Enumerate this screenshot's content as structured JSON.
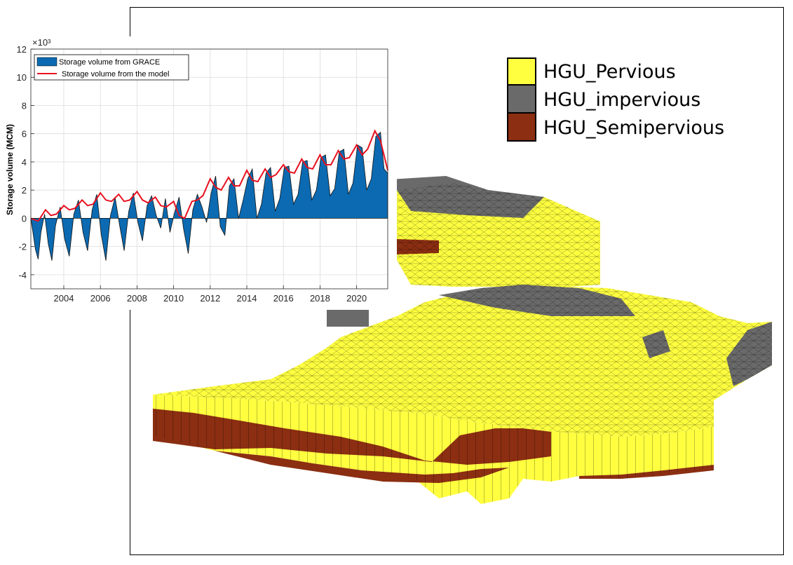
{
  "model_legend": {
    "items": [
      {
        "label": "HGU_Pervious",
        "color": "#ffff40"
      },
      {
        "label": "HGU_impervious",
        "color": "#6a6a6a"
      },
      {
        "label": "HGU_Semipervious",
        "color": "#8b2e12"
      }
    ]
  },
  "chart_data": {
    "type": "area",
    "ylabel": "Storage volume (MCM)",
    "y_exponent": "×10³",
    "xlim": [
      2002.2,
      2021.7
    ],
    "ylim": [
      -5,
      12
    ],
    "x_ticks": [
      2004,
      2006,
      2008,
      2010,
      2012,
      2014,
      2016,
      2018,
      2020
    ],
    "x_tick_labels": [
      "2004",
      "2006",
      "2008",
      "2010",
      "2012",
      "2014",
      "2016",
      "2018",
      "2020"
    ],
    "y_ticks": [
      -4,
      -2,
      0,
      2,
      4,
      6,
      8,
      10,
      12
    ],
    "y_tick_labels": [
      "-4",
      "-2",
      "0",
      "2",
      "4",
      "6",
      "8",
      "10",
      "12"
    ],
    "grid": true,
    "legend_position": "top-left",
    "series": [
      {
        "name": "Storage volume from GRACE",
        "style": "area",
        "color": "#0b6ab1",
        "x": [
          2002.2,
          2002.45,
          2002.6,
          2002.75,
          2002.95,
          2003.15,
          2003.35,
          2003.55,
          2003.8,
          2004.05,
          2004.3,
          2004.55,
          2004.8,
          2005.05,
          2005.3,
          2005.55,
          2005.8,
          2006.05,
          2006.3,
          2006.55,
          2006.8,
          2007.05,
          2007.3,
          2007.55,
          2007.8,
          2008.05,
          2008.3,
          2008.55,
          2008.8,
          2009.05,
          2009.3,
          2009.55,
          2009.8,
          2010.05,
          2010.3,
          2010.55,
          2010.8,
          2011.05,
          2011.3,
          2011.55,
          2011.8,
          2012.05,
          2012.3,
          2012.55,
          2012.8,
          2013.05,
          2013.3,
          2013.55,
          2013.8,
          2014.05,
          2014.3,
          2014.55,
          2014.8,
          2015.05,
          2015.3,
          2015.55,
          2015.8,
          2016.05,
          2016.3,
          2016.55,
          2016.8,
          2017.05,
          2017.3,
          2017.55,
          2017.8,
          2018.05,
          2018.3,
          2018.55,
          2018.8,
          2019.05,
          2019.3,
          2019.55,
          2019.8,
          2020.05,
          2020.3,
          2020.55,
          2020.8,
          2021.05,
          2021.3,
          2021.5,
          2021.7
        ],
        "y": [
          0.0,
          -2.2,
          -2.9,
          -1.0,
          0.3,
          -1.8,
          -3.0,
          -0.5,
          0.8,
          -1.5,
          -2.7,
          0.3,
          1.3,
          -1.0,
          -2.3,
          0.6,
          1.7,
          -1.2,
          -3.0,
          0.2,
          1.5,
          -0.5,
          -2.3,
          0.5,
          1.8,
          -0.3,
          -1.6,
          0.9,
          1.6,
          0.2,
          -0.7,
          1.4,
          -1.0,
          0.4,
          1.5,
          -0.8,
          -2.5,
          0.6,
          1.7,
          0.8,
          -0.3,
          1.8,
          3.0,
          -0.6,
          -1.2,
          2.3,
          2.8,
          0.0,
          1.3,
          2.8,
          3.5,
          0.0,
          1.0,
          3.2,
          3.6,
          0.5,
          1.4,
          3.6,
          3.7,
          1.0,
          1.7,
          4.0,
          4.1,
          1.3,
          2.0,
          4.3,
          4.5,
          1.6,
          2.1,
          4.7,
          4.9,
          1.7,
          2.5,
          5.2,
          5.0,
          2.0,
          2.8,
          5.8,
          6.1,
          3.5,
          3.2
        ]
      },
      {
        "name": "Storage volume from the model",
        "style": "line",
        "color": "#e8101f",
        "x": [
          2002.2,
          2002.6,
          2003.0,
          2003.3,
          2003.6,
          2004.0,
          2004.3,
          2004.6,
          2005.0,
          2005.3,
          2005.6,
          2006.0,
          2006.3,
          2006.6,
          2007.0,
          2007.3,
          2007.6,
          2008.0,
          2008.3,
          2008.6,
          2009.0,
          2009.3,
          2009.6,
          2010.0,
          2010.3,
          2010.6,
          2011.0,
          2011.3,
          2011.6,
          2012.0,
          2012.3,
          2012.6,
          2013.0,
          2013.3,
          2013.6,
          2014.0,
          2014.3,
          2014.6,
          2015.0,
          2015.3,
          2015.6,
          2016.0,
          2016.3,
          2016.6,
          2017.0,
          2017.3,
          2017.6,
          2018.0,
          2018.3,
          2018.6,
          2019.0,
          2019.3,
          2019.6,
          2020.0,
          2020.3,
          2020.6,
          2021.0,
          2021.3,
          2021.7
        ],
        "y": [
          0.0,
          -0.2,
          0.6,
          0.2,
          0.3,
          0.9,
          0.6,
          0.7,
          1.3,
          0.9,
          1.0,
          1.8,
          1.3,
          1.2,
          1.7,
          1.2,
          1.3,
          1.9,
          1.3,
          1.1,
          1.5,
          0.9,
          0.8,
          1.2,
          0.2,
          0.0,
          1.2,
          1.3,
          1.6,
          2.8,
          2.2,
          2.0,
          2.9,
          2.3,
          2.3,
          3.4,
          2.7,
          2.6,
          3.5,
          2.9,
          3.1,
          3.8,
          3.3,
          3.2,
          4.2,
          3.6,
          3.5,
          4.5,
          3.8,
          3.8,
          4.8,
          4.2,
          4.3,
          5.2,
          4.5,
          4.9,
          6.2,
          5.5,
          3.4
        ]
      }
    ]
  }
}
